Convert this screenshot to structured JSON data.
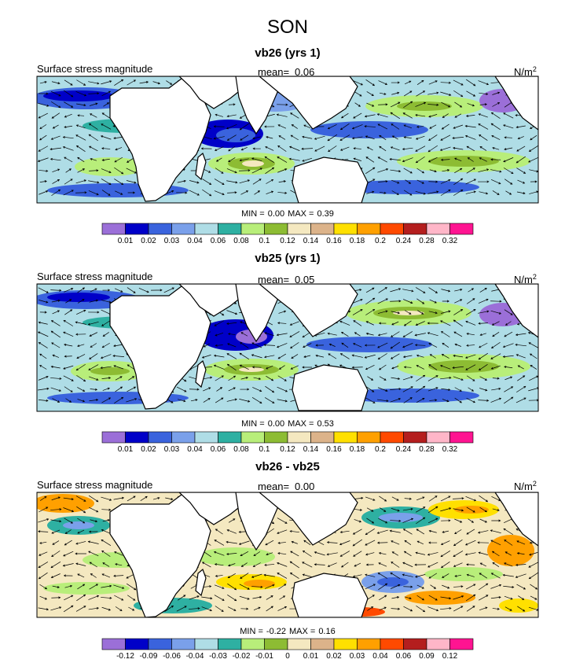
{
  "title": "SON",
  "colors": {
    "ocean_base": "#b0dde6",
    "land": "#ffffff",
    "coast": "#000000"
  },
  "chart_data": [
    {
      "type": "heatmap",
      "id": "p1",
      "title": "vb26 (yrs 1)",
      "left_label": "Surface stress magnitude",
      "mean_label": "mean=",
      "mean": "0.06",
      "units_base": "N/m",
      "units_exp": "2",
      "stats": {
        "min_label": "MIN =",
        "min": "0.00",
        "max_label": "MAX =",
        "max": "0.39"
      },
      "levels": [
        "0.01",
        "0.02",
        "0.03",
        "0.04",
        "0.06",
        "0.08",
        "0.1",
        "0.12",
        "0.14",
        "0.16",
        "0.18",
        "0.2",
        "0.24",
        "0.28",
        "0.32"
      ],
      "colors": [
        "#9b6fd8",
        "#0000c8",
        "#3a63dd",
        "#7aa0ea",
        "#afdde6",
        "#2eb0a2",
        "#b8ee7a",
        "#8dbc33",
        "#f4e8c0",
        "#dcb38a",
        "#ffe000",
        "#ffa000",
        "#ff4a00",
        "#b41e1e",
        "#ffb6c8",
        "#ff1491"
      ]
    },
    {
      "type": "heatmap",
      "id": "p2",
      "title": "vb25 (yrs 1)",
      "left_label": "Surface stress magnitude",
      "mean_label": "mean=",
      "mean": "0.05",
      "units_base": "N/m",
      "units_exp": "2",
      "stats": {
        "min_label": "MIN =",
        "min": "0.00",
        "max_label": "MAX =",
        "max": "0.53"
      },
      "levels": [
        "0.01",
        "0.02",
        "0.03",
        "0.04",
        "0.06",
        "0.08",
        "0.1",
        "0.12",
        "0.14",
        "0.16",
        "0.18",
        "0.2",
        "0.24",
        "0.28",
        "0.32"
      ],
      "colors": [
        "#9b6fd8",
        "#0000c8",
        "#3a63dd",
        "#7aa0ea",
        "#afdde6",
        "#2eb0a2",
        "#b8ee7a",
        "#8dbc33",
        "#f4e8c0",
        "#dcb38a",
        "#ffe000",
        "#ffa000",
        "#ff4a00",
        "#b41e1e",
        "#ffb6c8",
        "#ff1491"
      ]
    },
    {
      "type": "heatmap",
      "id": "p3",
      "title": "vb26 - vb25",
      "left_label": "Surface stress magnitude",
      "mean_label": "mean=",
      "mean": "0.00",
      "units_base": "N/m",
      "units_exp": "2",
      "stats": {
        "min_label": "MIN =",
        "min": "-0.22",
        "max_label": "MAX =",
        "max": "0.16"
      },
      "levels": [
        "-0.12",
        "-0.09",
        "-0.06",
        "-0.04",
        "-0.03",
        "-0.02",
        "-0.01",
        "0",
        "0.01",
        "0.02",
        "0.03",
        "0.04",
        "0.06",
        "0.09",
        "0.12"
      ],
      "colors": [
        "#9b6fd8",
        "#0000c8",
        "#3a63dd",
        "#7aa0ea",
        "#afdde6",
        "#2eb0a2",
        "#b8ee7a",
        "#8dbc33",
        "#f4e8c0",
        "#dcb38a",
        "#ffe000",
        "#ffa000",
        "#ff4a00",
        "#b41e1e",
        "#ffb6c8",
        "#ff1491"
      ]
    }
  ]
}
